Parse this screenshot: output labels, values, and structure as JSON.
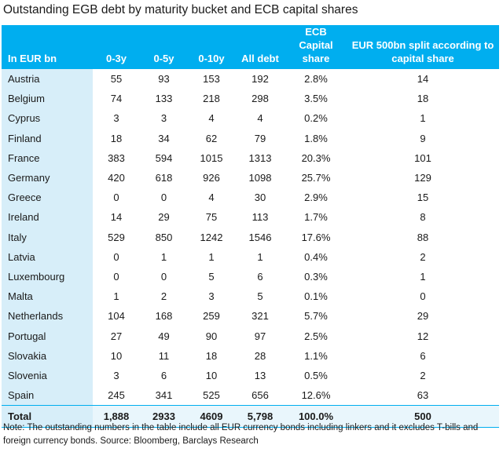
{
  "title": "Outstanding EGB debt by maturity bucket and ECB capital shares",
  "table": {
    "headers": [
      "In EUR bn",
      "0-3y",
      "0-5y",
      "0-10y",
      "All debt",
      "ECB Capital share",
      "EUR 500bn split according to capital share"
    ],
    "rows": [
      [
        "Austria",
        "55",
        "93",
        "153",
        "192",
        "2.8%",
        "14"
      ],
      [
        "Belgium",
        "74",
        "133",
        "218",
        "298",
        "3.5%",
        "18"
      ],
      [
        "Cyprus",
        "3",
        "3",
        "4",
        "4",
        "0.2%",
        "1"
      ],
      [
        "Finland",
        "18",
        "34",
        "62",
        "79",
        "1.8%",
        "9"
      ],
      [
        "France",
        "383",
        "594",
        "1015",
        "1313",
        "20.3%",
        "101"
      ],
      [
        "Germany",
        "420",
        "618",
        "926",
        "1098",
        "25.7%",
        "129"
      ],
      [
        "Greece",
        "0",
        "0",
        "4",
        "30",
        "2.9%",
        "15"
      ],
      [
        "Ireland",
        "14",
        "29",
        "75",
        "113",
        "1.7%",
        "8"
      ],
      [
        "Italy",
        "529",
        "850",
        "1242",
        "1546",
        "17.6%",
        "88"
      ],
      [
        "Latvia",
        "0",
        "1",
        "1",
        "1",
        "0.4%",
        "2"
      ],
      [
        "Luxembourg",
        "0",
        "0",
        "5",
        "6",
        "0.3%",
        "1"
      ],
      [
        "Malta",
        "1",
        "2",
        "3",
        "5",
        "0.1%",
        "0"
      ],
      [
        "Netherlands",
        "104",
        "168",
        "259",
        "321",
        "5.7%",
        "29"
      ],
      [
        "Portugal",
        "27",
        "49",
        "90",
        "97",
        "2.5%",
        "12"
      ],
      [
        "Slovakia",
        "10",
        "11",
        "18",
        "28",
        "1.1%",
        "6"
      ],
      [
        "Slovenia",
        "3",
        "6",
        "10",
        "13",
        "0.5%",
        "2"
      ],
      [
        "Spain",
        "245",
        "341",
        "525",
        "656",
        "12.6%",
        "63"
      ]
    ],
    "total": [
      "Total",
      "1,888",
      "2933",
      "4609",
      "5,798",
      "100.0%",
      "500"
    ]
  },
  "note": "Note: The outstanding numbers in the table include all EUR currency bonds including linkers and it excludes T-bills and foreign currency bonds. Source: Bloomberg, Barclays Research",
  "colors": {
    "header_bg": "#00aeef",
    "first_col_bg": "#d7eef9",
    "header_text": "#ffffff"
  }
}
